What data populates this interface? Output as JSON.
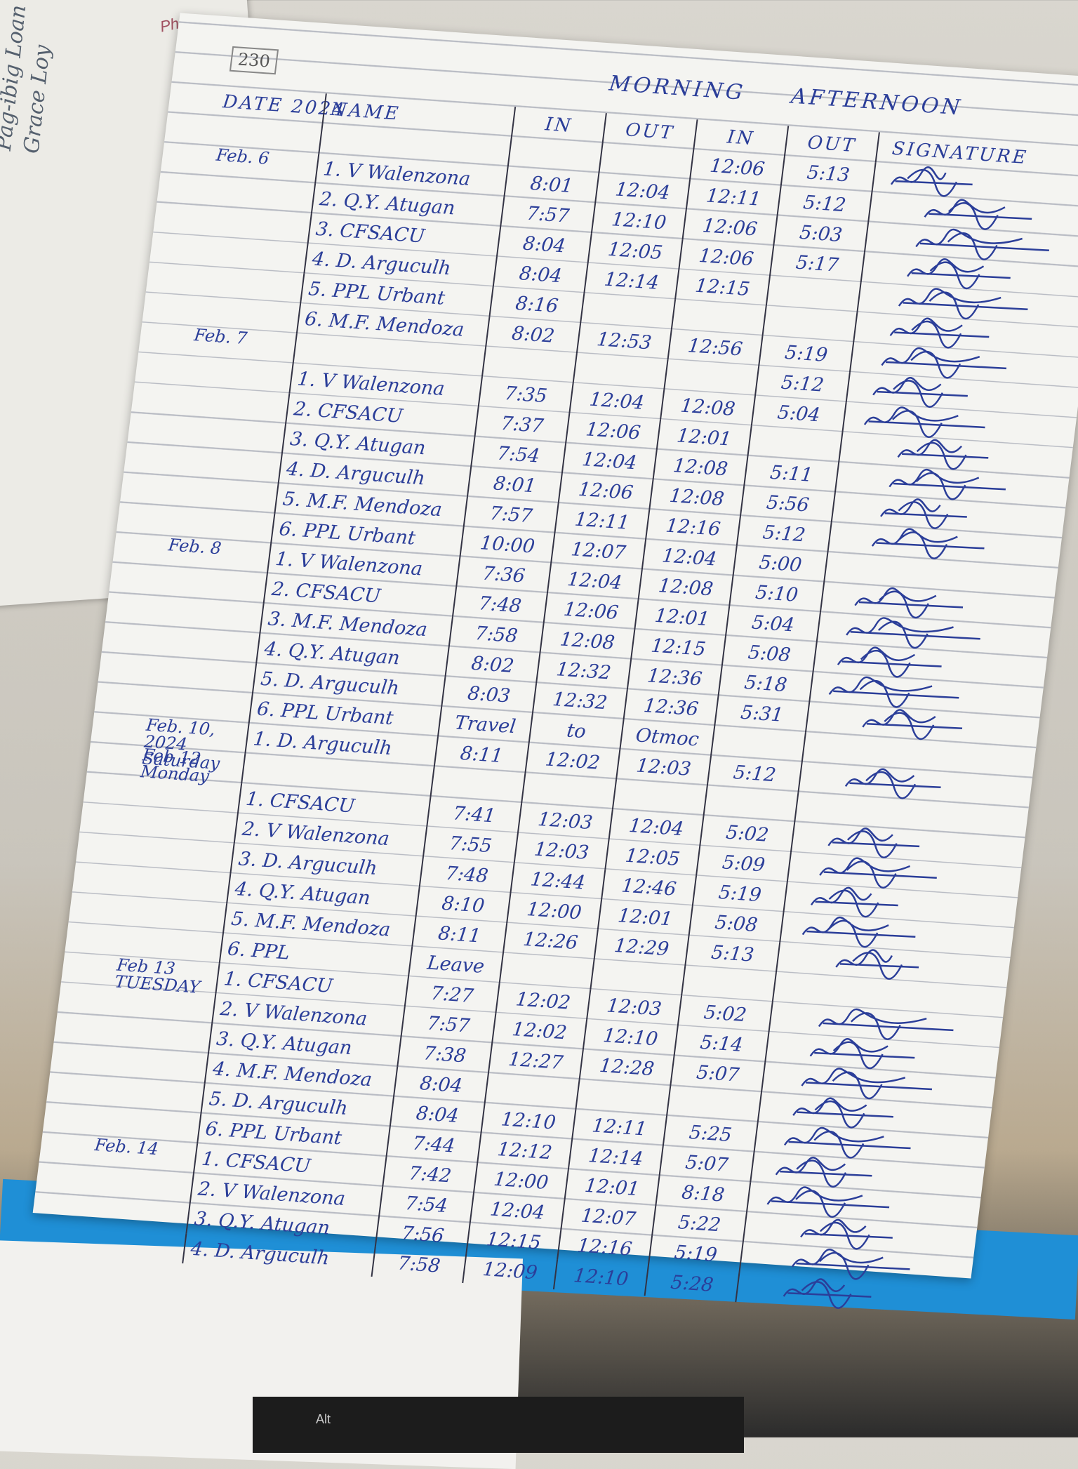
{
  "background": {
    "top_note": "Phil",
    "side_note": [
      "Pag-ibig Loan",
      "Grace Loy"
    ],
    "keyboard_key": "Alt"
  },
  "logbook": {
    "page_number": "230",
    "group_headers": {
      "morning": "MORNING",
      "afternoon": "AFTERNOON"
    },
    "columns": {
      "date": "DATE 2024",
      "name": "NAME",
      "am_in": "IN",
      "am_out": "OUT",
      "pm_in": "IN",
      "pm_out": "OUT",
      "signature": "SIGNATURE"
    },
    "ink_color": "#2b3e99",
    "rows": [
      {
        "date": "",
        "name": "",
        "am_in": "",
        "am_out": "",
        "pm_in": "12:06",
        "pm_out": "5:13",
        "signed": true
      },
      {
        "date": "Feb. 6",
        "name": "1. V Walenzona",
        "am_in": "8:01",
        "am_out": "12:04",
        "pm_in": "12:11",
        "pm_out": "5:12",
        "signed": true
      },
      {
        "date": "",
        "name": "2. Q.Y. Atugan",
        "am_in": "7:57",
        "am_out": "12:10",
        "pm_in": "12:06",
        "pm_out": "5:03",
        "signed": true
      },
      {
        "date": "",
        "name": "3. CFSACU",
        "am_in": "8:04",
        "am_out": "12:05",
        "pm_in": "12:06",
        "pm_out": "5:17",
        "signed": true
      },
      {
        "date": "",
        "name": "4. D. Arguculh",
        "am_in": "8:04",
        "am_out": "12:14",
        "pm_in": "12:15",
        "pm_out": "",
        "signed": true
      },
      {
        "date": "",
        "name": "5. PPL Urbant",
        "am_in": "8:16",
        "am_out": "",
        "pm_in": "",
        "pm_out": "",
        "signed": true
      },
      {
        "date": "",
        "name": "6. M.F. Mendoza",
        "am_in": "8:02",
        "am_out": "12:53",
        "pm_in": "12:56",
        "pm_out": "5:19",
        "signed": true
      },
      {
        "date": "Feb. 7",
        "name": "",
        "am_in": "",
        "am_out": "",
        "pm_in": "",
        "pm_out": "5:12",
        "signed": true
      },
      {
        "date": "",
        "name": "1. V Walenzona",
        "am_in": "7:35",
        "am_out": "12:04",
        "pm_in": "12:08",
        "pm_out": "5:04",
        "signed": true
      },
      {
        "date": "",
        "name": "2. CFSACU",
        "am_in": "7:37",
        "am_out": "12:06",
        "pm_in": "12:01",
        "pm_out": "",
        "signed": true
      },
      {
        "date": "",
        "name": "3. Q.Y. Atugan",
        "am_in": "7:54",
        "am_out": "12:04",
        "pm_in": "12:08",
        "pm_out": "5:11",
        "signed": true
      },
      {
        "date": "",
        "name": "4. D. Arguculh",
        "am_in": "8:01",
        "am_out": "12:06",
        "pm_in": "12:08",
        "pm_out": "5:56",
        "signed": true
      },
      {
        "date": "",
        "name": "5. M.F. Mendoza",
        "am_in": "7:57",
        "am_out": "12:11",
        "pm_in": "12:16",
        "pm_out": "5:12",
        "signed": true
      },
      {
        "date": "",
        "name": "6. PPL Urbant",
        "am_in": "10:00",
        "am_out": "12:07",
        "pm_in": "12:04",
        "pm_out": "5:00",
        "signed": false
      },
      {
        "date": "Feb. 8",
        "name": "1. V Walenzona",
        "am_in": "7:36",
        "am_out": "12:04",
        "pm_in": "12:08",
        "pm_out": "5:10",
        "signed": true
      },
      {
        "date": "",
        "name": "2. CFSACU",
        "am_in": "7:48",
        "am_out": "12:06",
        "pm_in": "12:01",
        "pm_out": "5:04",
        "signed": true
      },
      {
        "date": "",
        "name": "3. M.F. Mendoza",
        "am_in": "7:58",
        "am_out": "12:08",
        "pm_in": "12:15",
        "pm_out": "5:08",
        "signed": true
      },
      {
        "date": "",
        "name": "4. Q.Y. Atugan",
        "am_in": "8:02",
        "am_out": "12:32",
        "pm_in": "12:36",
        "pm_out": "5:18",
        "signed": true
      },
      {
        "date": "",
        "name": "5. D. Arguculh",
        "am_in": "8:03",
        "am_out": "12:32",
        "pm_in": "12:36",
        "pm_out": "5:31",
        "signed": true
      },
      {
        "date": "",
        "name": "6. PPL Urbant",
        "am_in": "Travel",
        "am_out": "to",
        "pm_in": "Otmoc",
        "pm_out": "",
        "signed": false
      },
      {
        "date": "Feb. 10, 2024 Saturday",
        "name": "1. D. Arguculh",
        "am_in": "8:11",
        "am_out": "12:02",
        "pm_in": "12:03",
        "pm_out": "5:12",
        "signed": true
      },
      {
        "date": "Feb 12 Monday",
        "name": "",
        "am_in": "",
        "am_out": "",
        "pm_in": "",
        "pm_out": "",
        "signed": false
      },
      {
        "date": "",
        "name": "1. CFSACU",
        "am_in": "7:41",
        "am_out": "12:03",
        "pm_in": "12:04",
        "pm_out": "5:02",
        "signed": true
      },
      {
        "date": "",
        "name": "2. V Walenzona",
        "am_in": "7:55",
        "am_out": "12:03",
        "pm_in": "12:05",
        "pm_out": "5:09",
        "signed": true
      },
      {
        "date": "",
        "name": "3. D. Arguculh",
        "am_in": "7:48",
        "am_out": "12:44",
        "pm_in": "12:46",
        "pm_out": "5:19",
        "signed": true
      },
      {
        "date": "",
        "name": "4. Q.Y. Atugan",
        "am_in": "8:10",
        "am_out": "12:00",
        "pm_in": "12:01",
        "pm_out": "5:08",
        "signed": true
      },
      {
        "date": "",
        "name": "5. M.F. Mendoza",
        "am_in": "8:11",
        "am_out": "12:26",
        "pm_in": "12:29",
        "pm_out": "5:13",
        "signed": true
      },
      {
        "date": "",
        "name": "6. PPL",
        "am_in": "Leave",
        "am_out": "",
        "pm_in": "",
        "pm_out": "",
        "signed": false
      },
      {
        "date": "Feb 13 TUESDAY",
        "name": "1. CFSACU",
        "am_in": "7:27",
        "am_out": "12:02",
        "pm_in": "12:03",
        "pm_out": "5:02",
        "signed": true
      },
      {
        "date": "",
        "name": "2. V Walenzona",
        "am_in": "7:57",
        "am_out": "12:02",
        "pm_in": "12:10",
        "pm_out": "5:14",
        "signed": true
      },
      {
        "date": "",
        "name": "3. Q.Y. Atugan",
        "am_in": "7:38",
        "am_out": "12:27",
        "pm_in": "12:28",
        "pm_out": "5:07",
        "signed": true
      },
      {
        "date": "",
        "name": "4. M.F. Mendoza",
        "am_in": "8:04",
        "am_out": "",
        "pm_in": "",
        "pm_out": "",
        "signed": true
      },
      {
        "date": "",
        "name": "5. D. Arguculh",
        "am_in": "8:04",
        "am_out": "12:10",
        "pm_in": "12:11",
        "pm_out": "5:25",
        "signed": true
      },
      {
        "date": "",
        "name": "6. PPL Urbant",
        "am_in": "7:44",
        "am_out": "12:12",
        "pm_in": "12:14",
        "pm_out": "5:07",
        "signed": true
      },
      {
        "date": "Feb. 14",
        "name": "1. CFSACU",
        "am_in": "7:42",
        "am_out": "12:00",
        "pm_in": "12:01",
        "pm_out": "8:18",
        "signed": true
      },
      {
        "date": "",
        "name": "2. V Walenzona",
        "am_in": "7:54",
        "am_out": "12:04",
        "pm_in": "12:07",
        "pm_out": "5:22",
        "signed": true
      },
      {
        "date": "",
        "name": "3. Q.Y. Atugan",
        "am_in": "7:56",
        "am_out": "12:15",
        "pm_in": "12:16",
        "pm_out": "5:19",
        "signed": true
      },
      {
        "date": "",
        "name": "4. D. Arguculh",
        "am_in": "7:58",
        "am_out": "12:09",
        "pm_in": "12:10",
        "pm_out": "5:28",
        "signed": true
      }
    ]
  }
}
